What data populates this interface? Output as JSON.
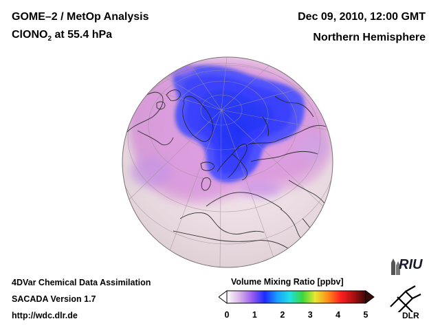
{
  "header": {
    "title_line1": "GOME–2 / MetOp Analysis",
    "title_line2_species": "ClONO",
    "title_line2_sub": "2",
    "title_line2_rest": " at 55.4 hPa",
    "date": "Dec 09, 2010, 12:00 GMT",
    "region": "Northern Hemisphere"
  },
  "footer": {
    "line1": "4DVar Chemical Data Assimilation",
    "line2": "SACADA Version 1.7",
    "line3": "http://wdc.dlr.de"
  },
  "colorbar": {
    "label": "Volume Mixing Ratio [ppbv]",
    "ticks": [
      "0",
      "1",
      "2",
      "3",
      "4",
      "5"
    ],
    "min": 0,
    "max": 5,
    "colors": [
      "#ffffff",
      "#d8b4e8",
      "#9a5cf0",
      "#1c2bff",
      "#1aa0ff",
      "#20e0e0",
      "#3ad63a",
      "#e8e830",
      "#ff8c1a",
      "#ff2020",
      "#b01010",
      "#3a0a0a"
    ]
  },
  "logos": {
    "riu": "RIU",
    "dlr": "DLR"
  },
  "colors": {
    "low": "#f4e6ec",
    "mid": "#e6a8e6",
    "high": "#2a3cff",
    "coast": "#1a1a1a"
  }
}
